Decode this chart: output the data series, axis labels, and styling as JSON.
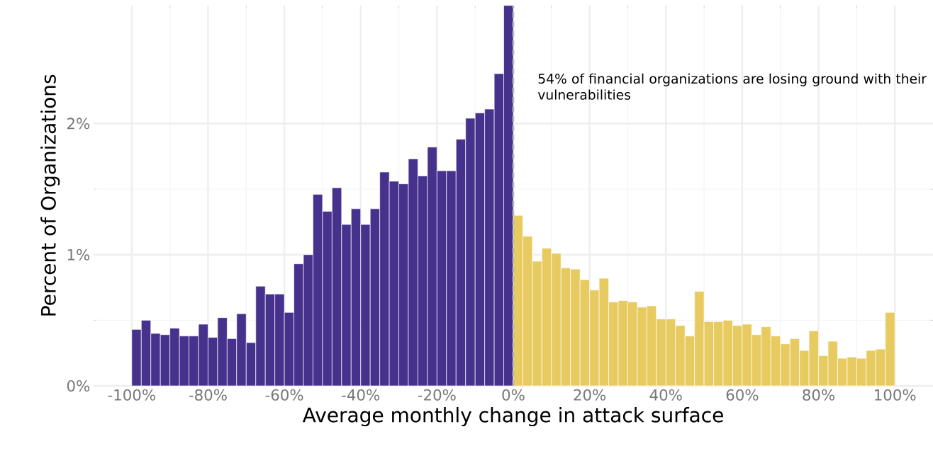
{
  "chart_data": {
    "type": "histogram",
    "xlabel": "Average monthly change in attack surface",
    "ylabel": "Percent of Organizations",
    "bins": [
      -100,
      -97.5,
      -95,
      -92.5,
      -90,
      -87.5,
      -85,
      -82.5,
      -80,
      -77.5,
      -75,
      -72.5,
      -70,
      -67.5,
      -65,
      -62.5,
      -60,
      -57.5,
      -55,
      -52.5,
      -50,
      -47.5,
      -45,
      -42.5,
      -40,
      -37.5,
      -35,
      -32.5,
      -30,
      -27.5,
      -25,
      -22.5,
      -20,
      -17.5,
      -15,
      -12.5,
      -10,
      -7.5,
      -5,
      -2.5,
      0,
      2.5,
      5,
      7.5,
      10,
      12.5,
      15,
      17.5,
      20,
      22.5,
      25,
      27.5,
      30,
      32.5,
      35,
      37.5,
      40,
      42.5,
      45,
      47.5,
      50,
      52.5,
      55,
      57.5,
      60,
      62.5,
      65,
      67.5,
      70,
      72.5,
      75,
      77.5,
      80,
      82.5,
      85,
      87.5,
      90,
      92.5,
      95,
      97.5,
      100
    ],
    "values": [
      0.43,
      0.5,
      0.4,
      0.39,
      0.44,
      0.38,
      0.38,
      0.47,
      0.37,
      0.52,
      0.36,
      0.55,
      0.33,
      0.76,
      0.7,
      0.7,
      0.56,
      0.93,
      1.0,
      1.46,
      1.33,
      1.51,
      1.23,
      1.35,
      1.23,
      1.35,
      1.63,
      1.56,
      1.54,
      1.73,
      1.6,
      1.82,
      1.64,
      1.64,
      1.88,
      2.04,
      2.08,
      2.11,
      2.38,
      2.9,
      1.3,
      1.14,
      0.95,
      1.05,
      1.01,
      0.9,
      0.89,
      0.81,
      0.73,
      0.82,
      0.64,
      0.65,
      0.64,
      0.6,
      0.61,
      0.51,
      0.51,
      0.46,
      0.38,
      0.72,
      0.49,
      0.49,
      0.5,
      0.46,
      0.47,
      0.39,
      0.45,
      0.38,
      0.32,
      0.36,
      0.27,
      0.42,
      0.23,
      0.34,
      0.21,
      0.22,
      0.21,
      0.27,
      0.28,
      0.56
    ],
    "colors": [
      "#46318c",
      "#46318c",
      "#46318c",
      "#46318c",
      "#46318c",
      "#46318c",
      "#46318c",
      "#46318c",
      "#46318c",
      "#46318c",
      "#46318c",
      "#46318c",
      "#46318c",
      "#46318c",
      "#46318c",
      "#46318c",
      "#46318c",
      "#46318c",
      "#46318c",
      "#46318c",
      "#46318c",
      "#46318c",
      "#46318c",
      "#46318c",
      "#46318c",
      "#46318c",
      "#46318c",
      "#46318c",
      "#46318c",
      "#46318c",
      "#46318c",
      "#46318c",
      "#46318c",
      "#46318c",
      "#46318c",
      "#46318c",
      "#46318c",
      "#46318c",
      "#46318c",
      "#46318c",
      "#e8cb60",
      "#e8cb60",
      "#e8cb60",
      "#e8cb60",
      "#e8cb60",
      "#e8cb60",
      "#e8cb60",
      "#e8cb60",
      "#e8cb60",
      "#e8cb60",
      "#e8cb60",
      "#e8cb60",
      "#e8cb60",
      "#e8cb60",
      "#e8cb60",
      "#e8cb60",
      "#e8cb60",
      "#e8cb60",
      "#e8cb60",
      "#e8cb60",
      "#e8cb60",
      "#e8cb60",
      "#e8cb60",
      "#e8cb60",
      "#e8cb60",
      "#e8cb60",
      "#e8cb60",
      "#e8cb60",
      "#e8cb60",
      "#e8cb60",
      "#e8cb60",
      "#e8cb60",
      "#e8cb60",
      "#e8cb60",
      "#e8cb60",
      "#e8cb60",
      "#e8cb60",
      "#e8cb60",
      "#e8cb60",
      "#e8cb60"
    ],
    "xlim": [
      -110,
      110
    ],
    "ylim": [
      0,
      2.9
    ],
    "xticks": [
      {
        "value": -100,
        "label": "-100%"
      },
      {
        "value": -80,
        "label": "-80%"
      },
      {
        "value": -60,
        "label": "-60%"
      },
      {
        "value": -40,
        "label": "-40%"
      },
      {
        "value": -20,
        "label": "-20%"
      },
      {
        "value": 0,
        "label": "0%"
      },
      {
        "value": 20,
        "label": "20%"
      },
      {
        "value": 40,
        "label": "40%"
      },
      {
        "value": 60,
        "label": "60%"
      },
      {
        "value": 80,
        "label": "80%"
      },
      {
        "value": 100,
        "label": "100%"
      }
    ],
    "yticks": [
      {
        "value": 0,
        "label": "0%"
      },
      {
        "value": 1,
        "label": "1%"
      },
      {
        "value": 2,
        "label": "2%"
      }
    ],
    "grid": true,
    "ref_lines": [
      {
        "axis": "x",
        "value": 0,
        "color": "#b8b8b8",
        "line_style": "dashed"
      }
    ],
    "annotations": [
      "54% of financial organizations are losing ground with their vulnerabilities"
    ]
  }
}
